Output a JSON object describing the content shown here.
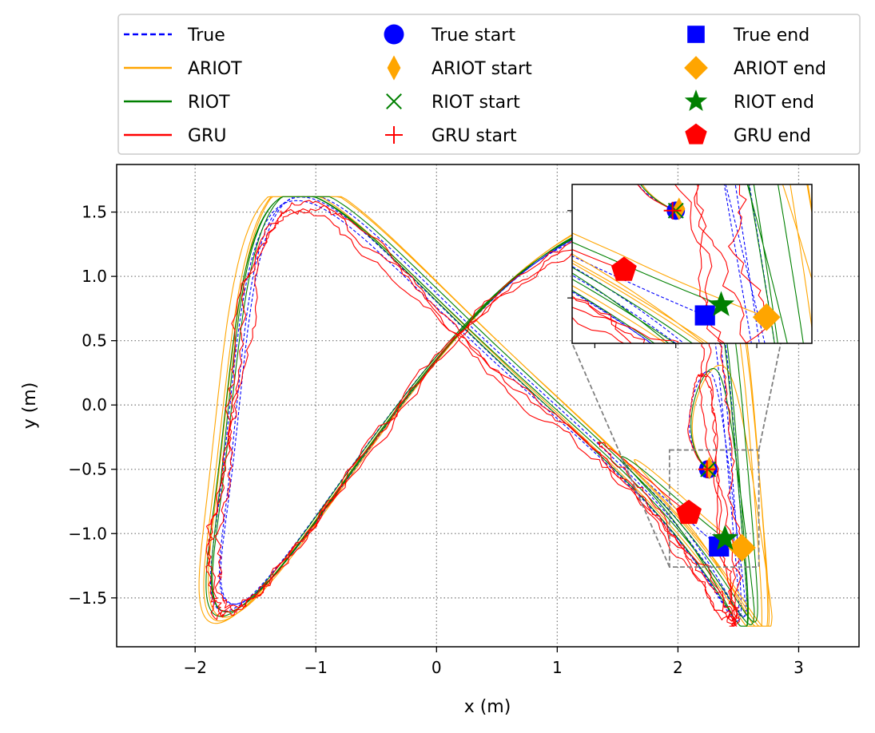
{
  "chart_data": {
    "type": "line",
    "title": "",
    "xlabel": "x (m)",
    "ylabel": "y (m)",
    "xlim": [
      -2.65,
      3.5
    ],
    "ylim": [
      -1.88,
      1.87
    ],
    "grid": true,
    "xticks": [
      -2,
      -1,
      0,
      1,
      2,
      3
    ],
    "yticks": [
      -1.5,
      -1.0,
      -0.5,
      0.0,
      0.5,
      1.0,
      1.5
    ],
    "xtick_labels": [
      "−2",
      "−1",
      "0",
      "1",
      "2",
      "3"
    ],
    "ytick_labels": [
      "−1.5",
      "−1.0",
      "−0.5",
      "0.0",
      "0.5",
      "1.0",
      "1.5"
    ],
    "legend_position": "top",
    "legend": [
      {
        "label": "True",
        "kind": "line",
        "color": "#0000ff",
        "dash": true
      },
      {
        "label": "ARIOT",
        "kind": "line",
        "color": "#ffa500"
      },
      {
        "label": "RIOT",
        "kind": "line",
        "color": "#008000"
      },
      {
        "label": "GRU",
        "kind": "line",
        "color": "#ff0000"
      },
      {
        "label": "True start",
        "kind": "marker",
        "marker": "circle",
        "color": "#0000ff"
      },
      {
        "label": "ARIOT start",
        "kind": "marker",
        "marker": "thin_diamond",
        "color": "#ffa500"
      },
      {
        "label": "RIOT start",
        "kind": "marker",
        "marker": "x",
        "color": "#008000"
      },
      {
        "label": "GRU start",
        "kind": "marker",
        "marker": "plus",
        "color": "#ff0000"
      },
      {
        "label": "True end",
        "kind": "marker",
        "marker": "square",
        "color": "#0000ff"
      },
      {
        "label": "ARIOT end",
        "kind": "marker",
        "marker": "diamond",
        "color": "#ffa500"
      },
      {
        "label": "RIOT end",
        "kind": "marker",
        "marker": "star",
        "color": "#008000"
      },
      {
        "label": "GRU end",
        "kind": "marker",
        "marker": "pentagon",
        "color": "#ff0000"
      }
    ],
    "series": [
      {
        "name": "True",
        "color": "#0000ff",
        "dash": true,
        "jitter": 0,
        "scale": 1.0,
        "dx": 0,
        "dy": 0
      },
      {
        "name": "ARIOT",
        "color": "#ffa500",
        "dash": false,
        "jitter": 0,
        "scale": 1.07,
        "dx": 0.05,
        "dy": 0.0
      },
      {
        "name": "RIOT",
        "color": "#008000",
        "dash": false,
        "jitter": 0,
        "scale": 1.03,
        "dx": 0.02,
        "dy": 0.0
      },
      {
        "name": "GRU",
        "color": "#ff0000",
        "dash": false,
        "jitter": 0.035,
        "scale": 0.99,
        "dx": -0.03,
        "dy": -0.04
      }
    ],
    "path_params": {
      "laps": 3.6,
      "points": 1400
    },
    "start_points": [
      {
        "name": "True start",
        "x": 2.25,
        "y": -0.5,
        "marker": "circle",
        "color": "#0000ff"
      },
      {
        "name": "ARIOT start",
        "x": 2.26,
        "y": -0.49,
        "marker": "thin_diamond",
        "color": "#ffa500"
      },
      {
        "name": "RIOT start",
        "x": 2.25,
        "y": -0.5,
        "marker": "x",
        "color": "#008000"
      },
      {
        "name": "GRU start",
        "x": 2.24,
        "y": -0.5,
        "marker": "plus",
        "color": "#ff0000"
      }
    ],
    "end_points": [
      {
        "name": "True end",
        "x": 2.34,
        "y": -1.1,
        "marker": "square",
        "color": "#0000ff"
      },
      {
        "name": "ARIOT end",
        "x": 2.53,
        "y": -1.11,
        "marker": "diamond",
        "color": "#ffa500"
      },
      {
        "name": "RIOT end",
        "x": 2.39,
        "y": -1.04,
        "marker": "star",
        "color": "#008000"
      },
      {
        "name": "GRU end",
        "x": 2.09,
        "y": -0.84,
        "marker": "pentagon",
        "color": "#ff0000"
      }
    ],
    "inset": {
      "xlim": [
        1.93,
        2.67
      ],
      "ylim": [
        -1.26,
        -0.35
      ],
      "xticks": [
        2.0,
        2.25,
        2.5
      ],
      "yticks": [
        -0.5,
        -1.0
      ]
    }
  }
}
